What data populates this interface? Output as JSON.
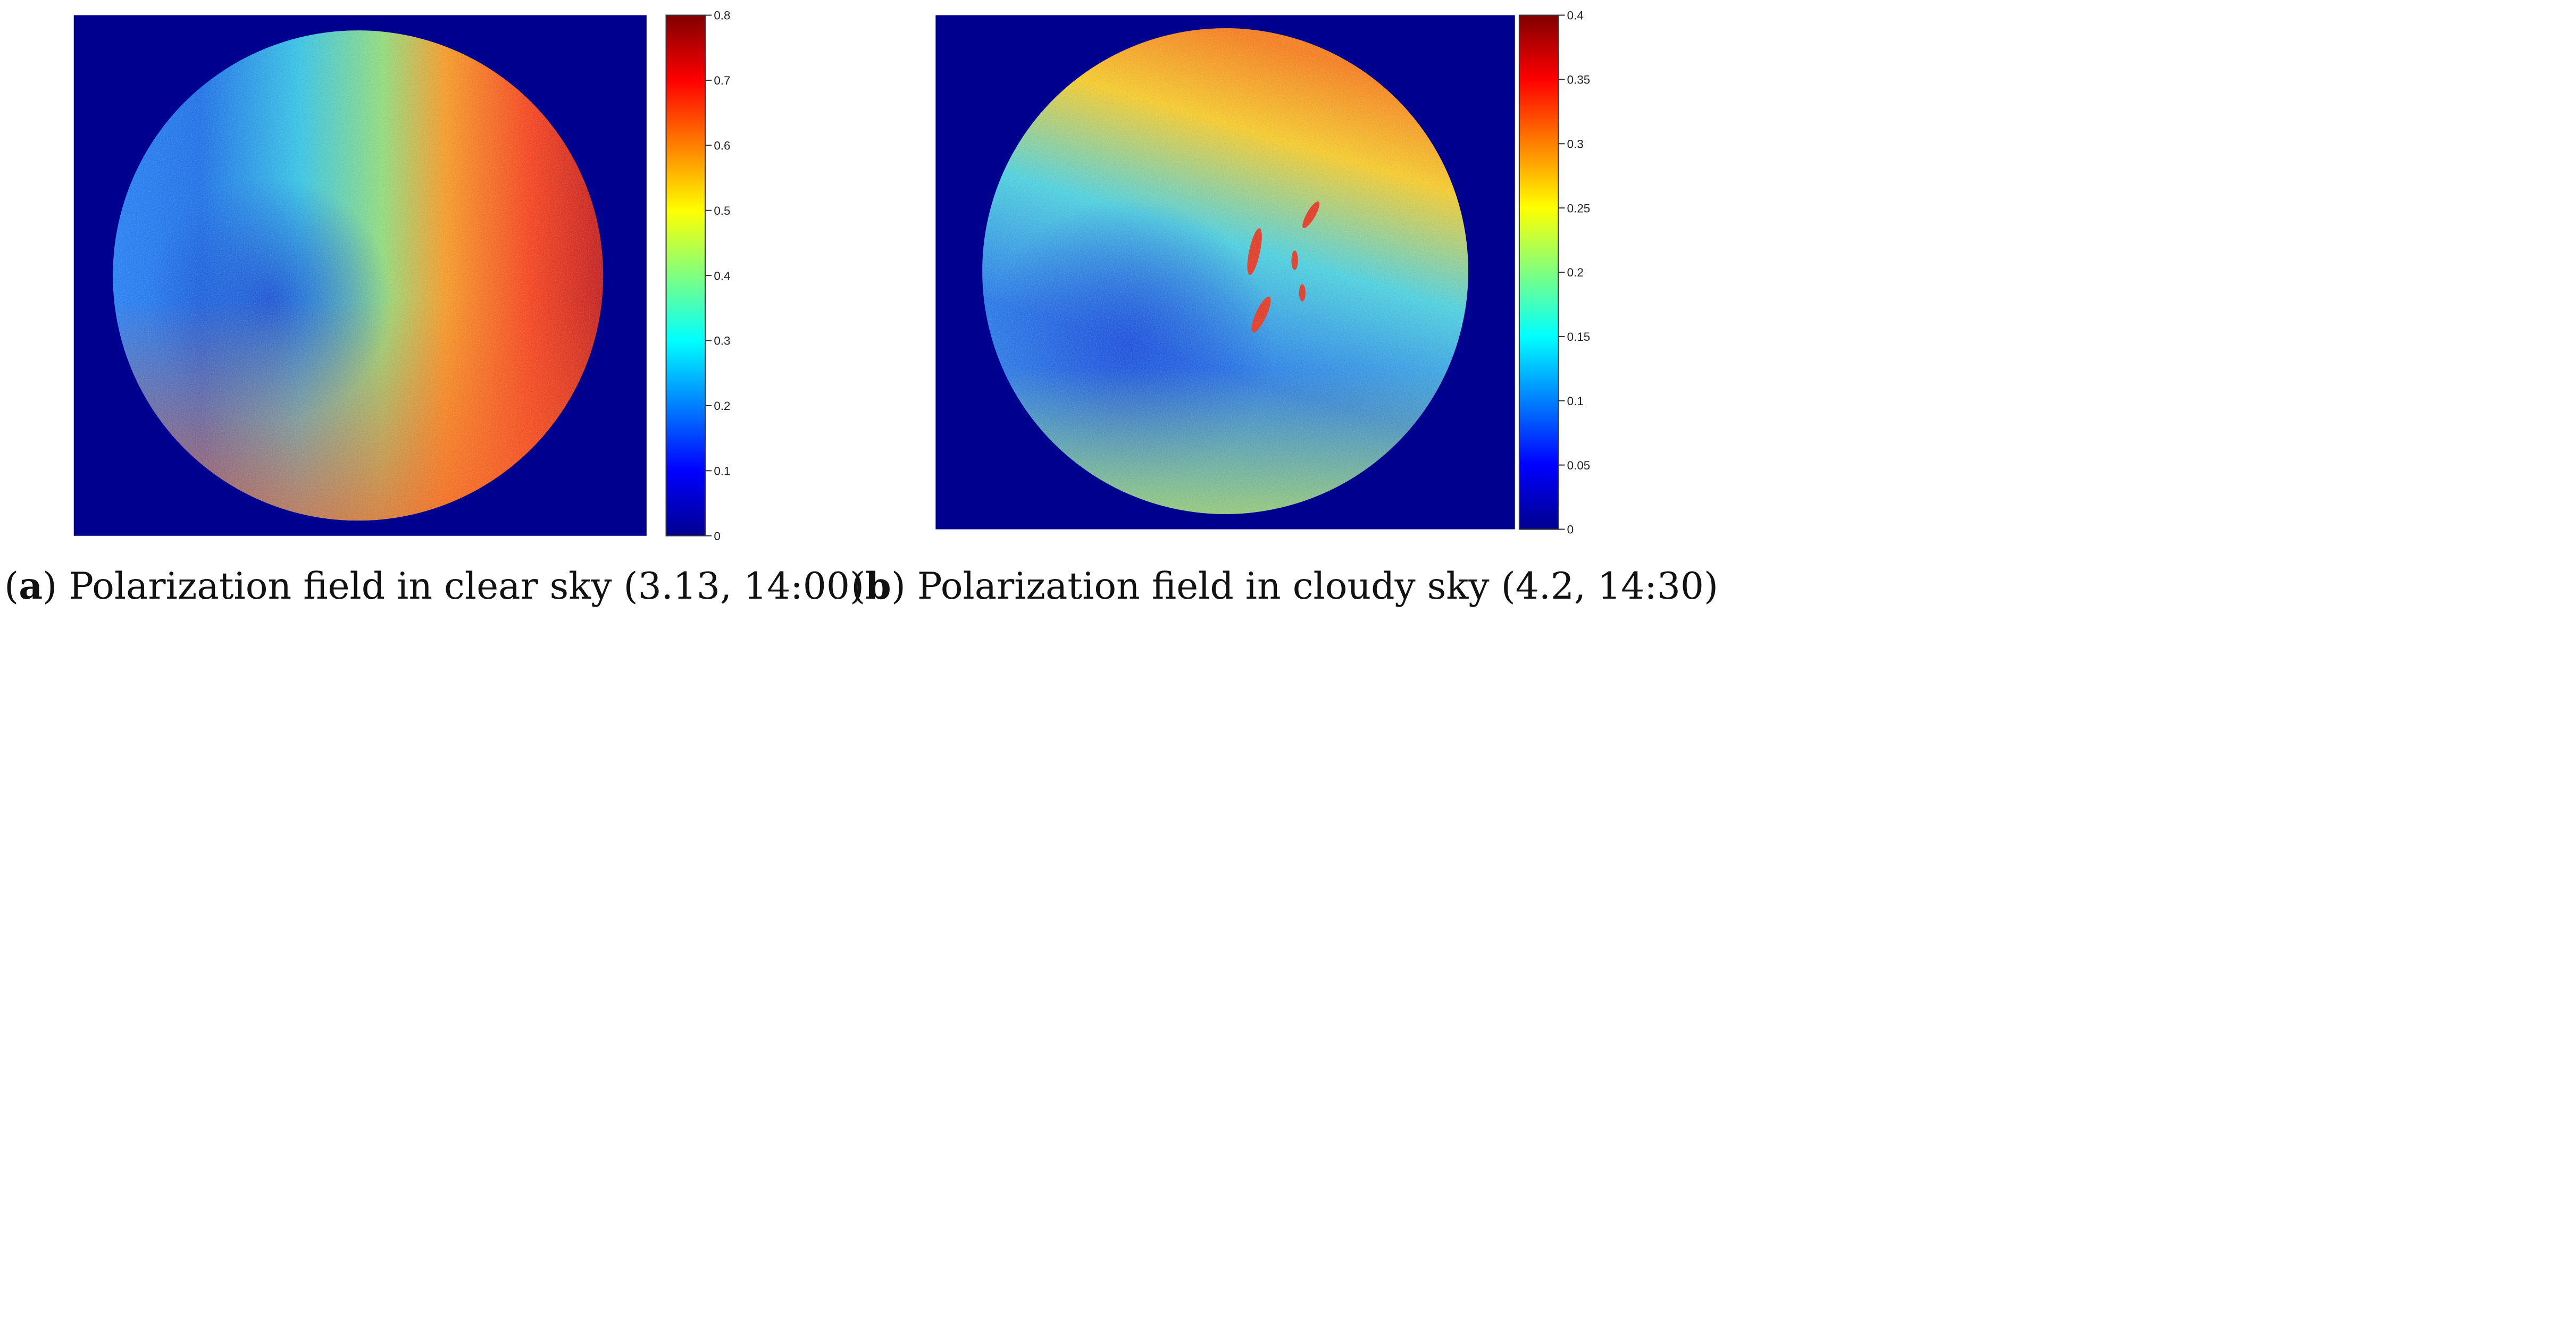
{
  "panels": [
    {
      "letter": "a",
      "caption_text": "Polarization field in clear sky (3.13, 14:00)",
      "colorbar": {
        "min": 0,
        "max": 0.8,
        "ticks": [
          "0",
          "0.1",
          "0.2",
          "0.3",
          "0.4",
          "0.5",
          "0.6",
          "0.7",
          "0.8"
        ]
      }
    },
    {
      "letter": "b",
      "caption_text": "Polarization field in cloudy sky (4.2, 14:30)",
      "colorbar": {
        "min": 0,
        "max": 0.4,
        "ticks": [
          "0",
          "0.05",
          "0.1",
          "0.15",
          "0.2",
          "0.25",
          "0.3",
          "0.35",
          "0.4"
        ]
      }
    }
  ],
  "colors": {
    "background": "#00008f",
    "jet": [
      "#00008f",
      "#0000ff",
      "#0080ff",
      "#00ffff",
      "#80ff80",
      "#ffff00",
      "#ff8000",
      "#ff0000",
      "#800000"
    ]
  }
}
